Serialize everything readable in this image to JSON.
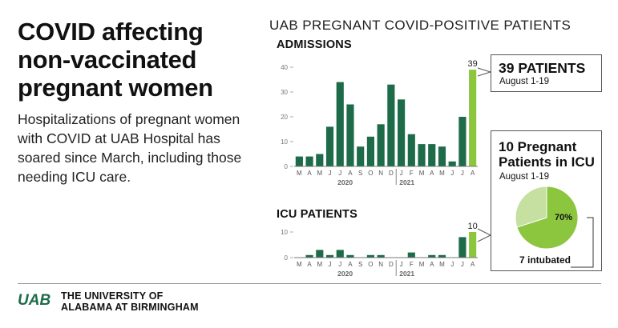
{
  "headline": "COVID affecting non-vaccinated pregnant women",
  "subtext": "Hospitalizations of pregnant women with COVID at UAB Hospital has soared since March, including those needing ICU care.",
  "chart_heading": "UAB PREGNANT COVID-POSITIVE PATIENTS",
  "colors": {
    "dark_green": "#1e6b4a",
    "light_green": "#8cc63f",
    "pale_green": "#c5e0a0",
    "axis": "#aaaaaa"
  },
  "chart_data": [
    {
      "type": "bar",
      "title": "ADMISSIONS",
      "categories": [
        "M",
        "A",
        "M",
        "J",
        "J",
        "A",
        "S",
        "O",
        "N",
        "D",
        "J",
        "F",
        "M",
        "A",
        "M",
        "J",
        "J",
        "A"
      ],
      "years": [
        {
          "label": "2020",
          "start": 0,
          "end": 9
        },
        {
          "label": "2021",
          "start": 10,
          "end": 17
        }
      ],
      "values": [
        4,
        4,
        5,
        16,
        34,
        25,
        8,
        12,
        17,
        33,
        27,
        13,
        9,
        9,
        8,
        2,
        20,
        39
      ],
      "highlight_index": 17,
      "highlight_label": "39",
      "yticks": [
        "0",
        "10",
        "20",
        "30",
        "40"
      ],
      "ylim": [
        0,
        40
      ]
    },
    {
      "type": "bar",
      "title": "ICU PATIENTS",
      "categories": [
        "M",
        "A",
        "M",
        "J",
        "J",
        "A",
        "S",
        "O",
        "N",
        "D",
        "J",
        "F",
        "M",
        "A",
        "M",
        "J",
        "J",
        "A"
      ],
      "years": [
        {
          "label": "2020",
          "start": 0,
          "end": 9
        },
        {
          "label": "2021",
          "start": 10,
          "end": 17
        }
      ],
      "values": [
        0,
        1,
        3,
        1,
        3,
        1,
        0,
        1,
        1,
        0,
        0,
        2,
        0,
        1,
        1,
        0,
        8,
        10
      ],
      "highlight_index": 17,
      "highlight_label": "10",
      "yticks": [
        "0",
        "10"
      ],
      "ylim": [
        0,
        10
      ]
    },
    {
      "type": "pie",
      "title": "10 Pregnant Patients in ICU",
      "subtitle": "August 1-19",
      "values": [
        70,
        30
      ],
      "slice_label": "70%",
      "annotation": "7 intubated"
    }
  ],
  "callouts": {
    "patients": {
      "big": "39 PATIENTS",
      "small": "August 1-19"
    },
    "icu": {
      "big": "10 Pregnant Patients in ICU",
      "small": "August 1-19",
      "pie_label": "70%",
      "intubated": "7 intubated"
    }
  },
  "logo": {
    "mark": "UAB",
    "line1": "THE UNIVERSITY OF",
    "line2": "ALABAMA AT BIRMINGHAM"
  }
}
